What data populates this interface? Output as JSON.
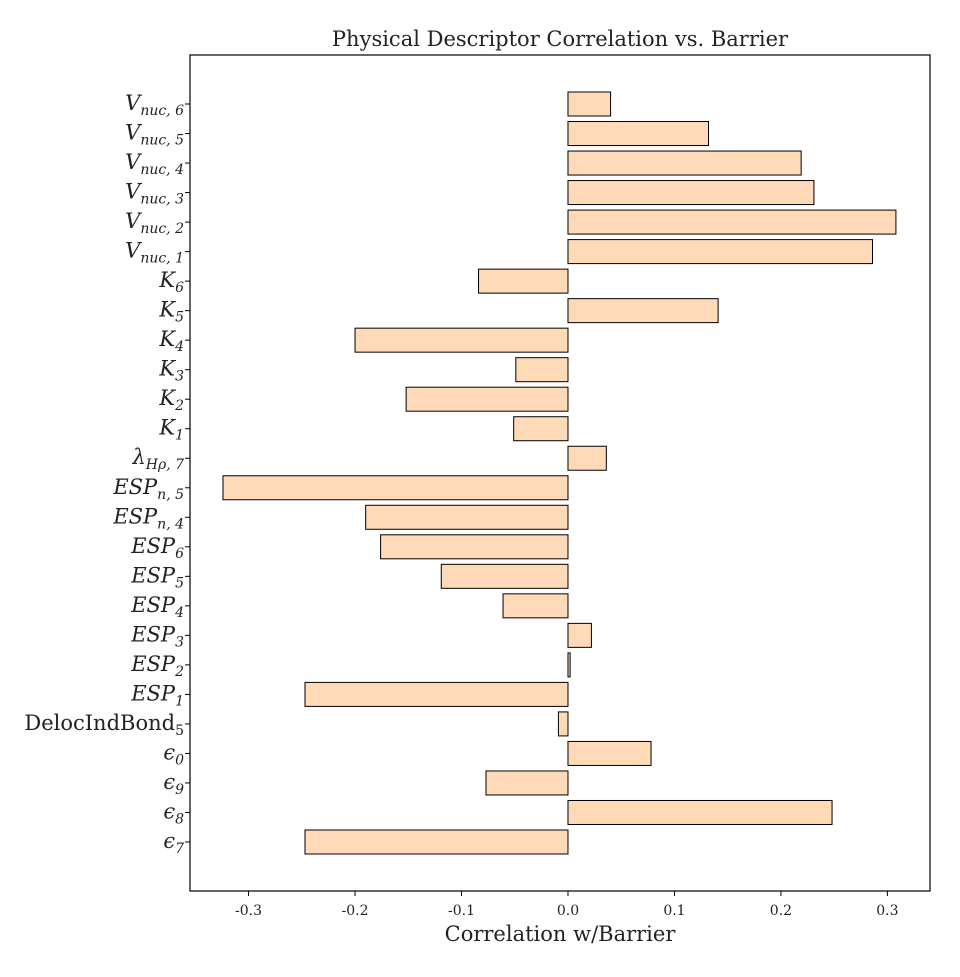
{
  "chart_data": {
    "type": "bar",
    "orientation": "horizontal",
    "title": "Physical Descriptor Correlation vs. Barrier",
    "xlabel": "Correlation w/Barrier",
    "ylabel": "",
    "xlim": [
      -0.355,
      0.34
    ],
    "xticks": [
      -0.3,
      -0.2,
      -0.1,
      0.0,
      0.1,
      0.2,
      0.3
    ],
    "xtick_labels": [
      "-0.3",
      "-0.2",
      "-0.1",
      "0.0",
      "0.1",
      "0.2",
      "0.3"
    ],
    "bar_color": "#ffdab9",
    "edge_color": "#000000",
    "grid": false,
    "categories": [
      {
        "base": "ϵ",
        "sub": "7",
        "upright": false
      },
      {
        "base": "ϵ",
        "sub": "8",
        "upright": false
      },
      {
        "base": "ϵ",
        "sub": "9",
        "upright": false
      },
      {
        "base": "ϵ",
        "sub": "0",
        "upright": false
      },
      {
        "base": "DelocIndBond",
        "sub": "5",
        "upright": true
      },
      {
        "base": "ESP",
        "sub": "1",
        "upright": false
      },
      {
        "base": "ESP",
        "sub": "2",
        "upright": false
      },
      {
        "base": "ESP",
        "sub": "3",
        "upright": false
      },
      {
        "base": "ESP",
        "sub": "4",
        "upright": false
      },
      {
        "base": "ESP",
        "sub": "5",
        "upright": false
      },
      {
        "base": "ESP",
        "sub": "6",
        "upright": false
      },
      {
        "base": "ESP",
        "sub": "n, 4",
        "upright": false
      },
      {
        "base": "ESP",
        "sub": "n, 5",
        "upright": false
      },
      {
        "base": "λ",
        "sub": "Hρ, 7",
        "upright": false
      },
      {
        "base": "K",
        "sub": "1",
        "upright": false
      },
      {
        "base": "K",
        "sub": "2",
        "upright": false
      },
      {
        "base": "K",
        "sub": "3",
        "upright": false
      },
      {
        "base": "K",
        "sub": "4",
        "upright": false
      },
      {
        "base": "K",
        "sub": "5",
        "upright": false
      },
      {
        "base": "K",
        "sub": "6",
        "upright": false
      },
      {
        "base": "V",
        "sub": "nuc, 1",
        "upright": false
      },
      {
        "base": "V",
        "sub": "nuc, 2",
        "upright": false
      },
      {
        "base": "V",
        "sub": "nuc, 3",
        "upright": false
      },
      {
        "base": "V",
        "sub": "nuc, 4",
        "upright": false
      },
      {
        "base": "V",
        "sub": "nuc, 5",
        "upright": false
      },
      {
        "base": "V",
        "sub": "nuc, 6",
        "upright": false
      }
    ],
    "values": [
      -0.247,
      0.248,
      -0.077,
      0.078,
      -0.009,
      -0.247,
      0.002,
      0.022,
      -0.061,
      -0.119,
      -0.176,
      -0.19,
      -0.324,
      0.036,
      -0.051,
      -0.152,
      -0.049,
      -0.2,
      0.141,
      -0.084,
      0.286,
      0.308,
      0.231,
      0.219,
      0.132,
      0.04
    ]
  }
}
